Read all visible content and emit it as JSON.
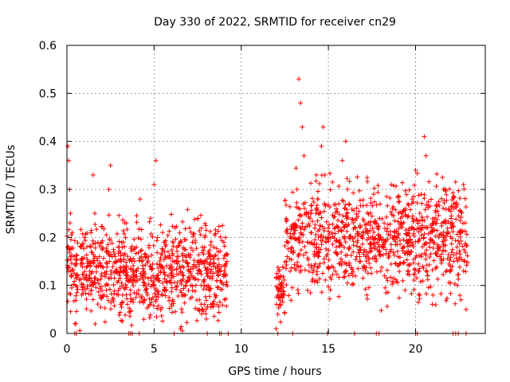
{
  "chart_data": {
    "type": "scatter",
    "title": "Day 330 of 2022, SRMTID for receiver cn29",
    "xlabel": "GPS time / hours",
    "ylabel": "SRMTID / TECUs",
    "xlim": [
      0,
      24
    ],
    "ylim": [
      0,
      0.6
    ],
    "xticks": [
      0,
      5,
      10,
      15,
      20
    ],
    "yticks": [
      0,
      0.1,
      0.2,
      0.3,
      0.4,
      0.5,
      0.6
    ],
    "xtick_labels": [
      "0",
      "5",
      "10",
      "15",
      "20"
    ],
    "ytick_labels": [
      "0",
      "0.1",
      "0.2",
      "0.3",
      "0.4",
      "0.5",
      "0.6"
    ],
    "grid": true,
    "marker": "+",
    "color": "#ff0000",
    "segments": [
      {
        "x_start": 0.0,
        "x_end": 9.2,
        "y_mean": 0.13,
        "y_spread": 0.06
      },
      {
        "x_start": 12.0,
        "x_end": 12.5,
        "y_mean": 0.08,
        "y_spread": 0.04
      },
      {
        "x_start": 12.5,
        "x_end": 23.0,
        "y_mean": 0.2,
        "y_spread": 0.07
      }
    ],
    "points": [
      [
        0.05,
        0.39
      ],
      [
        0.1,
        0.36
      ],
      [
        0.15,
        0.3
      ],
      [
        0.2,
        0.25
      ],
      [
        0.3,
        0.21
      ],
      [
        0.4,
        0.16
      ],
      [
        0.5,
        0.1
      ],
      [
        0.6,
        0.12
      ],
      [
        0.8,
        0.18
      ],
      [
        1.0,
        0.2
      ],
      [
        1.2,
        0.11
      ],
      [
        1.4,
        0.09
      ],
      [
        1.5,
        0.33
      ],
      [
        1.6,
        0.25
      ],
      [
        1.8,
        0.14
      ],
      [
        2.0,
        0.12
      ],
      [
        2.2,
        0.1
      ],
      [
        2.4,
        0.3
      ],
      [
        2.5,
        0.35
      ],
      [
        2.6,
        0.16
      ],
      [
        2.8,
        0.13
      ],
      [
        3.0,
        0.18
      ],
      [
        3.2,
        0.08
      ],
      [
        3.4,
        0.23
      ],
      [
        3.6,
        0.11
      ],
      [
        3.8,
        0.07
      ],
      [
        4.0,
        0.13
      ],
      [
        4.2,
        0.28
      ],
      [
        4.4,
        0.1
      ],
      [
        4.6,
        0.16
      ],
      [
        4.8,
        0.24
      ],
      [
        5.0,
        0.31
      ],
      [
        5.1,
        0.36
      ],
      [
        5.2,
        0.2
      ],
      [
        5.4,
        0.14
      ],
      [
        5.6,
        0.09
      ],
      [
        5.8,
        0.17
      ],
      [
        6.0,
        0.12
      ],
      [
        6.2,
        0.22
      ],
      [
        6.4,
        0.15
      ],
      [
        6.6,
        0.11
      ],
      [
        6.8,
        0.08
      ],
      [
        7.0,
        0.13
      ],
      [
        7.2,
        0.19
      ],
      [
        7.4,
        0.1
      ],
      [
        7.6,
        0.07
      ],
      [
        7.8,
        0.05
      ],
      [
        8.0,
        0.03
      ],
      [
        8.2,
        0.09
      ],
      [
        8.4,
        0.14
      ],
      [
        8.6,
        0.06
      ],
      [
        8.8,
        0.11
      ],
      [
        9.0,
        0.19
      ],
      [
        9.1,
        0.12
      ],
      [
        12.0,
        0.01
      ],
      [
        12.1,
        0.04
      ],
      [
        12.2,
        0.06
      ],
      [
        12.3,
        0.1
      ],
      [
        12.4,
        0.08
      ],
      [
        12.6,
        0.15
      ],
      [
        12.8,
        0.13
      ],
      [
        13.0,
        0.22
      ],
      [
        13.2,
        0.3
      ],
      [
        13.3,
        0.53
      ],
      [
        13.4,
        0.48
      ],
      [
        13.5,
        0.43
      ],
      [
        13.6,
        0.37
      ],
      [
        13.8,
        0.19
      ],
      [
        14.0,
        0.25
      ],
      [
        14.2,
        0.17
      ],
      [
        14.4,
        0.28
      ],
      [
        14.6,
        0.39
      ],
      [
        14.7,
        0.43
      ],
      [
        14.8,
        0.33
      ],
      [
        15.0,
        0.2
      ],
      [
        15.2,
        0.14
      ],
      [
        15.4,
        0.22
      ],
      [
        15.6,
        0.27
      ],
      [
        15.8,
        0.36
      ],
      [
        16.0,
        0.4
      ],
      [
        16.2,
        0.18
      ],
      [
        16.4,
        0.12
      ],
      [
        16.6,
        0.24
      ],
      [
        16.8,
        0.16
      ],
      [
        17.0,
        0.21
      ],
      [
        17.2,
        0.08
      ],
      [
        17.4,
        0.17
      ],
      [
        17.6,
        0.29
      ],
      [
        17.8,
        0.19
      ],
      [
        18.0,
        0.13
      ],
      [
        18.2,
        0.23
      ],
      [
        18.4,
        0.11
      ],
      [
        18.6,
        0.31
      ],
      [
        18.8,
        0.21
      ],
      [
        19.0,
        0.16
      ],
      [
        19.2,
        0.25
      ],
      [
        19.4,
        0.09
      ],
      [
        19.6,
        0.19
      ],
      [
        19.8,
        0.28
      ],
      [
        20.0,
        0.34
      ],
      [
        20.2,
        0.22
      ],
      [
        20.4,
        0.14
      ],
      [
        20.5,
        0.41
      ],
      [
        20.6,
        0.37
      ],
      [
        20.8,
        0.18
      ],
      [
        21.0,
        0.08
      ],
      [
        21.2,
        0.23
      ],
      [
        21.4,
        0.16
      ],
      [
        21.6,
        0.3
      ],
      [
        21.8,
        0.21
      ],
      [
        22.0,
        0.13
      ],
      [
        22.2,
        0.26
      ],
      [
        22.4,
        0.1
      ],
      [
        22.6,
        0.07
      ],
      [
        22.8,
        0.15
      ],
      [
        22.9,
        0.05
      ]
    ],
    "zero_markers_x": [
      0.45,
      0.55,
      3.55,
      3.65,
      3.75,
      4.15,
      6.15,
      8.05,
      8.75,
      8.85,
      9.25,
      12.1,
      12.95,
      14.95,
      16.5,
      17.75,
      17.9,
      20.0,
      20.1,
      22.15,
      22.3,
      22.45,
      22.9
    ]
  }
}
